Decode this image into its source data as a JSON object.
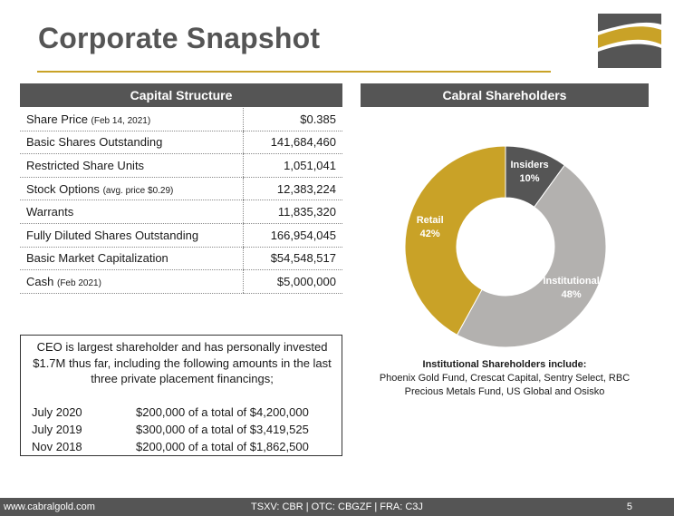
{
  "title": "Corporate Snapshot",
  "capital_structure": {
    "header": "Capital Structure",
    "rows": [
      {
        "label": "Share Price",
        "note": "(Feb 14, 2021)",
        "value": "$0.385"
      },
      {
        "label": "Basic Shares Outstanding",
        "note": "",
        "value": "141,684,460"
      },
      {
        "label": "Restricted Share Units",
        "note": "",
        "value": "1,051,041"
      },
      {
        "label": "Stock Options",
        "note": "(avg. price $0.29)",
        "value": "12,383,224"
      },
      {
        "label": "Warrants",
        "note": "",
        "value": "11,835,320"
      },
      {
        "label": "Fully Diluted Shares Outstanding",
        "note": "",
        "value": "166,954,045"
      },
      {
        "label": "Basic Market Capitalization",
        "note": "",
        "value": "$54,548,517"
      },
      {
        "label": "Cash",
        "note": "(Feb 2021)",
        "value": "$5,000,000"
      }
    ]
  },
  "ceo_box": {
    "text": "CEO is largest shareholder and has personally invested $1.7M thus far, including the following amounts in the last three private placement financings;",
    "rows": [
      {
        "date": "July 2020",
        "detail": "$200,000 of a total of $4,200,000"
      },
      {
        "date": "July 2019",
        "detail": "$300,000 of a total of $3,419,525"
      },
      {
        "date": "Nov 2018",
        "detail": "$200,000 of a total of $1,862,500"
      }
    ]
  },
  "shareholders": {
    "header": "Cabral Shareholders",
    "chart_data": {
      "type": "pie",
      "donut": true,
      "categories": [
        "Insiders",
        "Institutional",
        "Retail"
      ],
      "values": [
        10,
        48,
        42
      ],
      "value_labels": [
        "10%",
        "48%",
        "42%"
      ],
      "colors": [
        "#555555",
        "#b3b1af",
        "#c9a227"
      ]
    },
    "institutional_title": "Institutional Shareholders include:",
    "institutional_body": "Phoenix Gold Fund, Crescat Capital, Sentry Select, RBC Precious Metals Fund, US Global and Osisko"
  },
  "footer": {
    "url": "www.cabralgold.com",
    "tickers": "TSXV: CBR  |  OTC: CBGZF  |  FRA: C3J",
    "page": "5"
  },
  "colors": {
    "gold": "#c9a227",
    "dark_gray": "#555555",
    "light_gray": "#b3b1af"
  }
}
